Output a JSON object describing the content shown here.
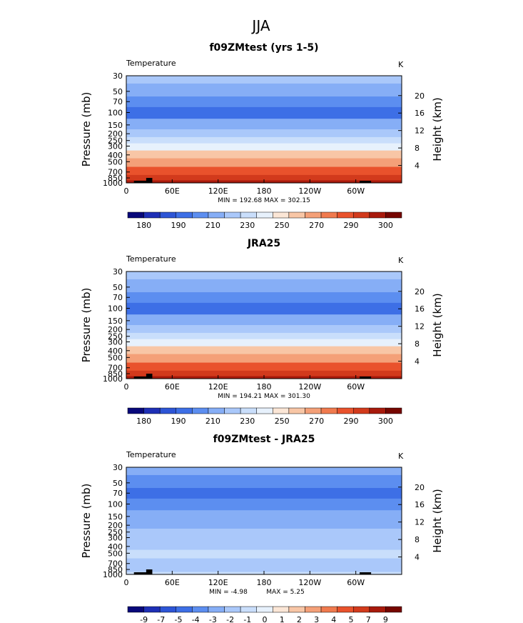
{
  "figure": {
    "title": "JJA"
  },
  "colors": {
    "temperature_scale": [
      "#08087a",
      "#1e2fb6",
      "#2d55d6",
      "#3d6fe6",
      "#5c8ef0",
      "#86aef6",
      "#aac8fa",
      "#c9defb",
      "#e7f1fc",
      "#fbe6d6",
      "#f8c6a6",
      "#f4a078",
      "#f07a4e",
      "#e9522c",
      "#d23a1c",
      "#a81a0c",
      "#760600"
    ],
    "difference_scale": [
      "#08087a",
      "#1e2fb6",
      "#2d55d6",
      "#3d6fe6",
      "#5c8ef0",
      "#86aef6",
      "#aac8fa",
      "#c9defb",
      "#e7f1fc",
      "#fbe6d6",
      "#f8c6a6",
      "#f4a078",
      "#f07a4e",
      "#e9522c",
      "#d23a1c",
      "#a81a0c",
      "#760600"
    ]
  },
  "chart_data": [
    {
      "type": "heatmap",
      "title": "f09ZMtest (yrs 1-5)",
      "left_label": "Temperature",
      "right_label": "K",
      "ylabel": "Pressure  (mb)",
      "ylabel_right": "Height  (km)",
      "xticks": [
        "0",
        "60E",
        "120E",
        "180",
        "120W",
        "60W"
      ],
      "xlim": [
        0,
        360
      ],
      "yticks": [
        "30",
        "50",
        "70",
        "100",
        "150",
        "200",
        "250",
        "300",
        "400",
        "500",
        "700",
        "850",
        "1000"
      ],
      "ylim": [
        1000,
        30
      ],
      "yscale": "log",
      "height_ticks": [
        "20",
        "16",
        "12",
        "8",
        "4"
      ],
      "stats": "MIN = 192.68   MAX = 302.15",
      "colorbar_labels": [
        "180",
        "190",
        "210",
        "230",
        "250",
        "270",
        "290",
        "300"
      ],
      "profile": [
        {
          "p": 30,
          "value": 213
        },
        {
          "p": 50,
          "value": 207
        },
        {
          "p": 70,
          "value": 200
        },
        {
          "p": 100,
          "value": 197
        },
        {
          "p": 150,
          "value": 207
        },
        {
          "p": 200,
          "value": 216
        },
        {
          "p": 250,
          "value": 225
        },
        {
          "p": 300,
          "value": 235
        },
        {
          "p": 400,
          "value": 251
        },
        {
          "p": 500,
          "value": 264
        },
        {
          "p": 700,
          "value": 280
        },
        {
          "p": 850,
          "value": 290
        },
        {
          "p": 1000,
          "value": 297
        }
      ]
    },
    {
      "type": "heatmap",
      "title": "JRA25",
      "left_label": "Temperature",
      "right_label": "K",
      "ylabel": "Pressure  (mb)",
      "ylabel_right": "Height  (km)",
      "xticks": [
        "0",
        "60E",
        "120E",
        "180",
        "120W",
        "60W"
      ],
      "xlim": [
        0,
        360
      ],
      "yticks": [
        "30",
        "50",
        "70",
        "100",
        "150",
        "200",
        "250",
        "300",
        "400",
        "500",
        "700",
        "850",
        "1000"
      ],
      "ylim": [
        1000,
        30
      ],
      "yscale": "log",
      "height_ticks": [
        "20",
        "16",
        "12",
        "8",
        "4"
      ],
      "stats": "MIN = 194.21   MAX = 301.30",
      "colorbar_labels": [
        "180",
        "190",
        "210",
        "230",
        "250",
        "270",
        "290",
        "300"
      ],
      "profile": [
        {
          "p": 30,
          "value": 214
        },
        {
          "p": 50,
          "value": 208
        },
        {
          "p": 70,
          "value": 203
        },
        {
          "p": 100,
          "value": 199
        },
        {
          "p": 150,
          "value": 207
        },
        {
          "p": 200,
          "value": 216
        },
        {
          "p": 250,
          "value": 226
        },
        {
          "p": 300,
          "value": 236
        },
        {
          "p": 400,
          "value": 252
        },
        {
          "p": 500,
          "value": 265
        },
        {
          "p": 700,
          "value": 280
        },
        {
          "p": 850,
          "value": 290
        },
        {
          "p": 1000,
          "value": 298
        }
      ]
    },
    {
      "type": "heatmap",
      "title": "f09ZMtest - JRA25",
      "left_label": "Temperature",
      "right_label": "K",
      "ylabel": "Pressure  (mb)",
      "ylabel_right": "Height  (km)",
      "xticks": [
        "0",
        "60E",
        "120E",
        "180",
        "120W",
        "60W"
      ],
      "xlim": [
        0,
        360
      ],
      "yticks": [
        "30",
        "50",
        "70",
        "100",
        "150",
        "200",
        "250",
        "300",
        "400",
        "500",
        "700",
        "850",
        "1000"
      ],
      "ylim": [
        1000,
        30
      ],
      "yscale": "log",
      "height_ticks": [
        "20",
        "16",
        "12",
        "8",
        "4"
      ],
      "stats_min": "MIN =   -4.98",
      "stats_max": "MAX =    5.25",
      "colorbar_labels": [
        "-9",
        "-7",
        "-5",
        "-4",
        "-3",
        "-2",
        "-1",
        "0",
        "1",
        "2",
        "3",
        "4",
        "5",
        "7",
        "9"
      ],
      "profile": [
        {
          "p": 30,
          "value": -1.5
        },
        {
          "p": 50,
          "value": -2.5
        },
        {
          "p": 70,
          "value": -3.5
        },
        {
          "p": 100,
          "value": -2.5
        },
        {
          "p": 150,
          "value": -1.5
        },
        {
          "p": 200,
          "value": -1.2
        },
        {
          "p": 250,
          "value": -0.8
        },
        {
          "p": 300,
          "value": -0.5
        },
        {
          "p": 400,
          "value": -0.5
        },
        {
          "p": 500,
          "value": 0.5
        },
        {
          "p": 700,
          "value": -0.5
        },
        {
          "p": 850,
          "value": -0.5
        },
        {
          "p": 1000,
          "value": 0.5
        }
      ]
    }
  ]
}
